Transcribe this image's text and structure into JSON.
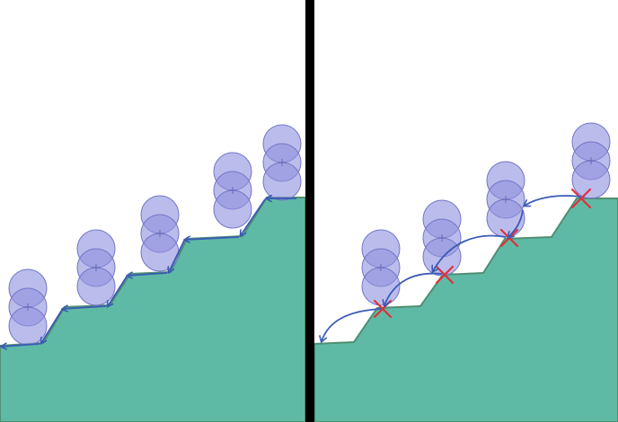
{
  "colors": {
    "terrain_fill": "#5fbaa5",
    "terrain_edge": "#4f8f73",
    "sphere_fill": "#8f93de",
    "sphere_stroke": "#7376c6",
    "arrow": "#3a5ab6",
    "cross": "#e0303a",
    "divider": "#000000"
  },
  "panels": [
    {
      "id": "left",
      "description_icon": "staircase-with-sequential-step-arrows-icon",
      "spheres_per_stack": 3,
      "arrows": "sequential-stair-following",
      "crosses": 0
    },
    {
      "id": "right",
      "description_icon": "staircase-with-jump-arrows-icon",
      "spheres_per_stack": 3,
      "arrows": "curved-jumps",
      "crosses": 4
    }
  ]
}
